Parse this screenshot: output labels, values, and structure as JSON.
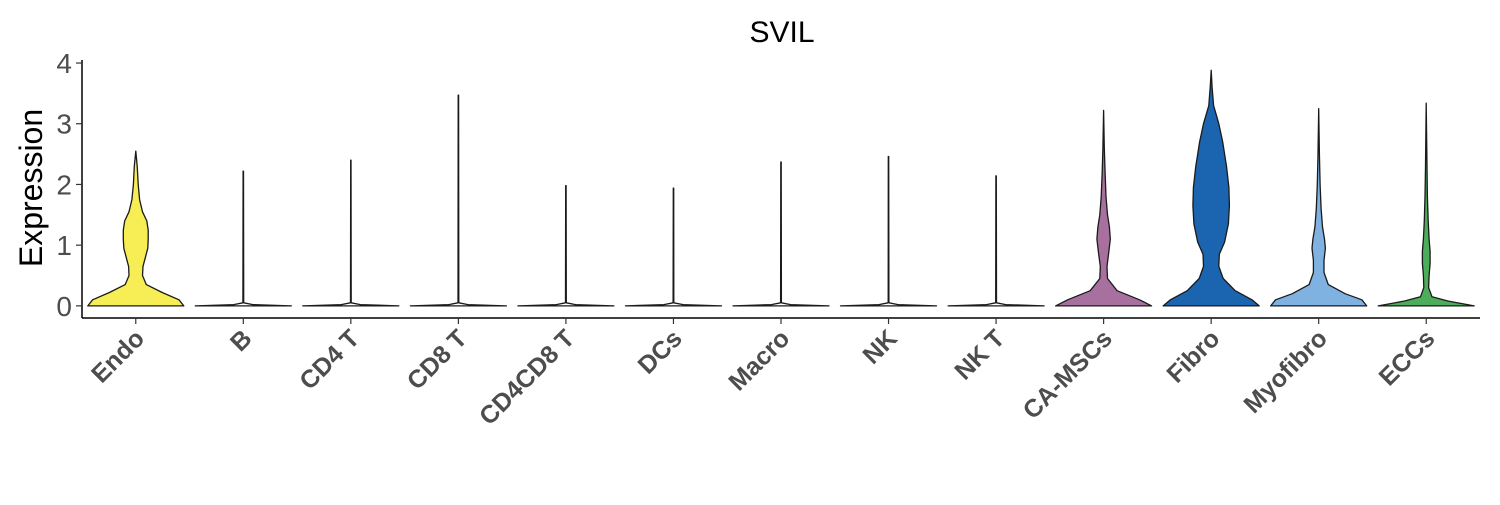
{
  "chart_data": {
    "type": "violin",
    "title": "SVIL",
    "xlabel": "",
    "ylabel": "Expression",
    "ylim": [
      -0.2,
      4.05
    ],
    "yticks": [
      "0",
      "1",
      "2",
      "3",
      "4"
    ],
    "grid": false,
    "legend": "none",
    "categories": [
      "Endo",
      "B",
      "CD4 T",
      "CD8 T",
      "CD4CD8 T",
      "DCs",
      "Macro",
      "NK",
      "NK T",
      "CA-MSCs",
      "Fibro",
      "Myofibro",
      "ECCs"
    ],
    "series": [
      {
        "category": "Endo",
        "color": "#F7EE55",
        "max": 2.55,
        "profile": [
          [
            0,
            1.0
          ],
          [
            0.1,
            0.9
          ],
          [
            0.22,
            0.55
          ],
          [
            0.35,
            0.22
          ],
          [
            0.5,
            0.14
          ],
          [
            0.65,
            0.15
          ],
          [
            0.8,
            0.2
          ],
          [
            0.95,
            0.25
          ],
          [
            1.1,
            0.26
          ],
          [
            1.25,
            0.26
          ],
          [
            1.4,
            0.23
          ],
          [
            1.55,
            0.14
          ],
          [
            1.75,
            0.08
          ],
          [
            2.0,
            0.05
          ],
          [
            2.3,
            0.03
          ],
          [
            2.55,
            0
          ]
        ]
      },
      {
        "category": "B",
        "color": "#FFFFFF",
        "max": 2.22,
        "profile": [
          [
            0,
            1.0
          ],
          [
            0.02,
            0.2
          ],
          [
            0.05,
            0.008
          ],
          [
            2.22,
            0.004
          ]
        ]
      },
      {
        "category": "CD4 T",
        "color": "#FFFFFF",
        "max": 2.4,
        "profile": [
          [
            0,
            1.0
          ],
          [
            0.02,
            0.2
          ],
          [
            0.05,
            0.008
          ],
          [
            2.4,
            0.004
          ]
        ]
      },
      {
        "category": "CD8 T",
        "color": "#FFFFFF",
        "max": 3.47,
        "profile": [
          [
            0,
            1.0
          ],
          [
            0.02,
            0.2
          ],
          [
            0.05,
            0.008
          ],
          [
            3.47,
            0.004
          ]
        ]
      },
      {
        "category": "CD4CD8 T",
        "color": "#FFFFFF",
        "max": 1.98,
        "profile": [
          [
            0,
            1.0
          ],
          [
            0.02,
            0.2
          ],
          [
            0.05,
            0.008
          ],
          [
            1.98,
            0.004
          ]
        ]
      },
      {
        "category": "DCs",
        "color": "#FFFFFF",
        "max": 1.94,
        "profile": [
          [
            0,
            1.0
          ],
          [
            0.02,
            0.2
          ],
          [
            0.05,
            0.008
          ],
          [
            1.94,
            0.004
          ]
        ]
      },
      {
        "category": "Macro",
        "color": "#FFFFFF",
        "max": 2.37,
        "profile": [
          [
            0,
            1.0
          ],
          [
            0.02,
            0.2
          ],
          [
            0.05,
            0.008
          ],
          [
            2.37,
            0.004
          ]
        ]
      },
      {
        "category": "NK",
        "color": "#FFFFFF",
        "max": 2.46,
        "profile": [
          [
            0,
            1.0
          ],
          [
            0.02,
            0.2
          ],
          [
            0.05,
            0.008
          ],
          [
            2.46,
            0.004
          ]
        ]
      },
      {
        "category": "NK T",
        "color": "#FFFFFF",
        "max": 2.14,
        "profile": [
          [
            0,
            1.0
          ],
          [
            0.02,
            0.2
          ],
          [
            0.05,
            0.008
          ],
          [
            2.14,
            0.004
          ]
        ]
      },
      {
        "category": "CA-MSCs",
        "color": "#A8709E",
        "max": 3.22,
        "profile": [
          [
            0,
            1.0
          ],
          [
            0.1,
            0.75
          ],
          [
            0.25,
            0.28
          ],
          [
            0.45,
            0.08
          ],
          [
            0.65,
            0.07
          ],
          [
            0.9,
            0.11
          ],
          [
            1.1,
            0.14
          ],
          [
            1.3,
            0.12
          ],
          [
            1.5,
            0.08
          ],
          [
            1.8,
            0.05
          ],
          [
            2.2,
            0.03
          ],
          [
            2.6,
            0.015
          ],
          [
            3.22,
            0
          ]
        ]
      },
      {
        "category": "Fibro",
        "color": "#1A64B0",
        "max": 3.88,
        "profile": [
          [
            0,
            1.0
          ],
          [
            0.1,
            0.85
          ],
          [
            0.25,
            0.5
          ],
          [
            0.45,
            0.25
          ],
          [
            0.65,
            0.16
          ],
          [
            0.85,
            0.17
          ],
          [
            1.05,
            0.28
          ],
          [
            1.35,
            0.36
          ],
          [
            1.65,
            0.38
          ],
          [
            1.95,
            0.37
          ],
          [
            2.3,
            0.32
          ],
          [
            2.7,
            0.24
          ],
          [
            3.0,
            0.16
          ],
          [
            3.3,
            0.05
          ],
          [
            3.6,
            0.02
          ],
          [
            3.88,
            0
          ]
        ]
      },
      {
        "category": "Myofibro",
        "color": "#7FB2E0",
        "max": 3.25,
        "profile": [
          [
            0,
            1.0
          ],
          [
            0.1,
            0.9
          ],
          [
            0.2,
            0.55
          ],
          [
            0.35,
            0.2
          ],
          [
            0.55,
            0.11
          ],
          [
            0.75,
            0.11
          ],
          [
            0.95,
            0.14
          ],
          [
            1.1,
            0.12
          ],
          [
            1.3,
            0.08
          ],
          [
            1.6,
            0.05
          ],
          [
            2.0,
            0.03
          ],
          [
            2.5,
            0.015
          ],
          [
            3.25,
            0
          ]
        ]
      },
      {
        "category": "ECCs",
        "color": "#4CAE5A",
        "max": 3.34,
        "profile": [
          [
            0,
            1.0
          ],
          [
            0.08,
            0.45
          ],
          [
            0.15,
            0.12
          ],
          [
            0.3,
            0.05
          ],
          [
            0.5,
            0.06
          ],
          [
            0.7,
            0.08
          ],
          [
            0.9,
            0.08
          ],
          [
            1.1,
            0.06
          ],
          [
            1.4,
            0.04
          ],
          [
            1.8,
            0.025
          ],
          [
            2.3,
            0.015
          ],
          [
            3.34,
            0
          ]
        ]
      }
    ]
  }
}
